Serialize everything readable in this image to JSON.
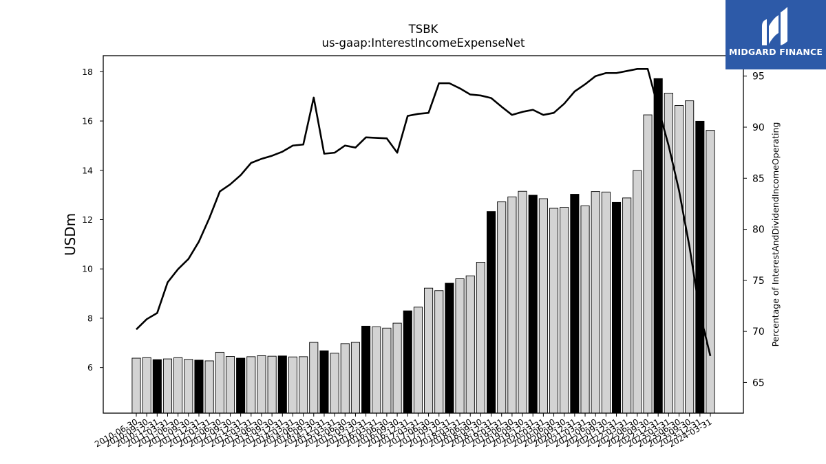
{
  "chart_data": {
    "type": "bar+line",
    "title": "TSBK",
    "subtitle": "us-gaap:InterestIncomeExpenseNet",
    "ylabel_left": "USDm",
    "ylabel_right": "Percentage of InterestAndDividendIncomeOperating",
    "ylim_left": [
      4.15,
      18.65
    ],
    "ylim_right": [
      62.0,
      97.0
    ],
    "yticks_left": [
      6,
      8,
      10,
      12,
      14,
      16,
      18
    ],
    "yticks_right": [
      65,
      70,
      75,
      80,
      85,
      90,
      95
    ],
    "categories": [
      "2010-06-30",
      "2010-09-30",
      "2010-12-31",
      "2011-03-31",
      "2011-06-30",
      "2011-09-30",
      "2011-12-31",
      "2012-03-31",
      "2012-06-30",
      "2012-09-30",
      "2012-12-31",
      "2013-03-31",
      "2013-06-30",
      "2013-09-30",
      "2013-12-31",
      "2014-03-31",
      "2014-06-30",
      "2014-09-30",
      "2014-12-31",
      "2015-03-31",
      "2015-06-30",
      "2015-09-30",
      "2015-12-31",
      "2016-03-31",
      "2016-06-30",
      "2016-09-30",
      "2016-12-31",
      "2017-03-31",
      "2017-06-30",
      "2017-09-30",
      "2017-12-31",
      "2018-03-31",
      "2018-06-30",
      "2018-09-30",
      "2018-12-31",
      "2019-03-31",
      "2019-06-30",
      "2019-09-30",
      "2019-12-31",
      "2020-03-31",
      "2020-06-30",
      "2020-09-30",
      "2020-12-31",
      "2021-03-31",
      "2021-06-30",
      "2021-09-30",
      "2021-12-31",
      "2022-03-31",
      "2022-06-30",
      "2022-09-30",
      "2022-12-31",
      "2023-03-31",
      "2023-06-30",
      "2023-09-30",
      "2023-12-31",
      "2024-03-31"
    ],
    "series": [
      {
        "kind": "bar",
        "values": [
          6.38,
          6.4,
          6.32,
          6.35,
          6.4,
          6.33,
          6.3,
          6.27,
          6.62,
          6.45,
          6.38,
          6.44,
          6.48,
          6.46,
          6.47,
          6.43,
          6.44,
          7.02,
          6.68,
          6.58,
          6.97,
          7.02,
          7.68,
          7.65,
          7.6,
          7.8,
          8.3,
          8.45,
          9.22,
          9.12,
          9.42,
          9.6,
          9.72,
          10.27,
          12.33,
          12.72,
          12.92,
          13.15,
          12.99,
          12.85,
          12.46,
          12.5,
          13.03,
          12.56,
          13.14,
          13.12,
          12.7,
          12.88,
          13.99,
          16.25,
          17.72,
          17.13,
          16.63,
          16.82,
          15.99,
          15.62
        ],
        "highlight": [
          false,
          false,
          true,
          false,
          false,
          false,
          true,
          false,
          false,
          false,
          true,
          false,
          false,
          false,
          true,
          false,
          false,
          false,
          true,
          false,
          false,
          false,
          true,
          false,
          false,
          false,
          true,
          false,
          false,
          false,
          true,
          false,
          false,
          false,
          true,
          false,
          false,
          false,
          true,
          false,
          false,
          false,
          true,
          false,
          false,
          false,
          true,
          false,
          false,
          false,
          true,
          false,
          false,
          false,
          true,
          false
        ]
      },
      {
        "kind": "line",
        "axis": "right",
        "values": [
          70.2,
          71.2,
          71.8,
          74.8,
          76.1,
          77.1,
          78.8,
          81.1,
          83.7,
          84.4,
          85.3,
          86.5,
          86.9,
          87.2,
          87.6,
          88.2,
          88.3,
          92.9,
          87.4,
          87.5,
          88.2,
          88.0,
          89.0,
          88.95,
          88.9,
          87.5,
          91.1,
          91.3,
          91.4,
          94.3,
          94.3,
          93.8,
          93.2,
          93.1,
          92.85,
          92.0,
          91.2,
          91.5,
          91.7,
          91.2,
          91.4,
          92.3,
          93.5,
          94.2,
          95.0,
          95.3,
          95.3,
          95.5,
          95.7,
          95.7,
          91.9,
          88.2,
          83.8,
          78.3,
          71.8,
          67.6
        ]
      }
    ]
  },
  "logo": {
    "text": "MIDGARD FINANCE",
    "color": "#2d5aa8"
  },
  "colors": {
    "bar_fill": "#d3d3d3",
    "bar_highlight": "#000000",
    "bar_edge": "#000000",
    "line": "#000000"
  }
}
